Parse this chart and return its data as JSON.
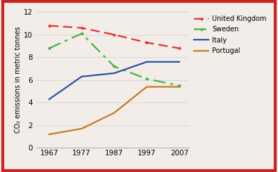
{
  "years": [
    1967,
    1977,
    1987,
    1997,
    2007
  ],
  "united_kingdom": [
    10.8,
    10.6,
    10.0,
    9.3,
    8.8
  ],
  "sweden": [
    8.8,
    10.1,
    7.2,
    6.1,
    5.5
  ],
  "italy": [
    4.3,
    6.3,
    6.6,
    7.6,
    7.6
  ],
  "portugal": [
    1.2,
    1.7,
    3.1,
    5.4,
    5.4
  ],
  "uk_color": "#e8312a",
  "sweden_color": "#4caf3e",
  "italy_color": "#2b4fa8",
  "portugal_color": "#c87820",
  "bg_color": "#f2ede8",
  "ylabel": "CO₂ emissions in metric tonnes",
  "ylim": [
    0,
    12
  ],
  "yticks": [
    0,
    2,
    4,
    6,
    8,
    10,
    12
  ],
  "legend_labels": [
    "United Kingdom",
    "Sweden",
    "Italy",
    "Portugal"
  ],
  "border_color": "#cc2222",
  "border_width": 3
}
